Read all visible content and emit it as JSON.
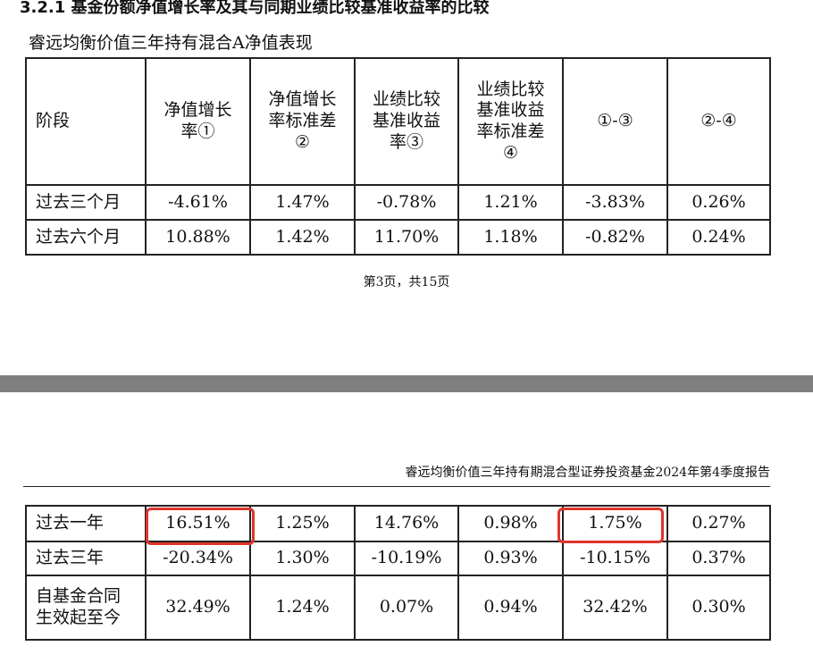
{
  "section_heading": "3.2.1 基金份额净值增长率及其与同期业绩比较基准收益率的比较",
  "table_title": "睿远均衡价值三年持有混合A净值表现",
  "table": {
    "headers": [
      [
        "阶段"
      ],
      [
        "净值增长",
        "率①"
      ],
      [
        "净值增长",
        "率标准差",
        "②"
      ],
      [
        "业绩比较",
        "基准收益",
        "率③"
      ],
      [
        "业绩比较",
        "基准收益",
        "率标准差",
        "④"
      ],
      [
        "①-③"
      ],
      [
        "②-④"
      ]
    ],
    "rows_page1": [
      {
        "stage": [
          "过去三个月"
        ],
        "values": [
          "-4.61%",
          "1.47%",
          "-0.78%",
          "1.21%",
          "-3.83%",
          "0.26%"
        ]
      },
      {
        "stage": [
          "过去六个月"
        ],
        "values": [
          "10.88%",
          "1.42%",
          "11.70%",
          "1.18%",
          "-0.82%",
          "0.24%"
        ]
      }
    ],
    "rows_page2": [
      {
        "stage": [
          "过去一年"
        ],
        "values": [
          "16.51%",
          "1.25%",
          "14.76%",
          "0.98%",
          "1.75%",
          "0.27%"
        ]
      },
      {
        "stage": [
          "过去三年"
        ],
        "values": [
          "-20.34%",
          "1.30%",
          "-10.19%",
          "0.93%",
          "-10.15%",
          "0.37%"
        ]
      },
      {
        "stage": [
          "自基金合同",
          "生效起至今"
        ],
        "values": [
          "32.49%",
          "1.24%",
          "0.07%",
          "0.94%",
          "32.42%",
          "0.30%"
        ]
      }
    ]
  },
  "page_number": "第3页，共15页",
  "report_header": "睿远均衡价值三年持有期混合型证券投资基金2024年第4季度报告",
  "colors": {
    "highlight": "#e0342a",
    "page_gap": "#7f7f7f",
    "border": "#222222"
  }
}
